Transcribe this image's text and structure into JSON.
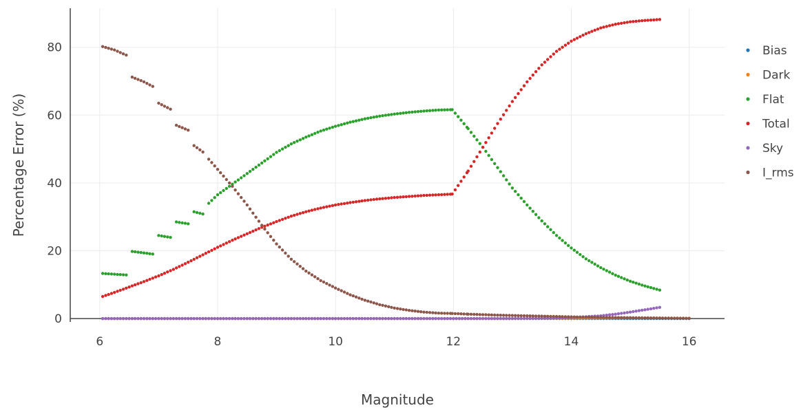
{
  "chart_data": {
    "type": "scatter",
    "title": "",
    "xlabel": "Magnitude",
    "ylabel": "Percentage Error (%)",
    "xlim": [
      5.5,
      16.6
    ],
    "ylim": [
      -1,
      91.5
    ],
    "xticks": [
      6,
      8,
      10,
      12,
      14,
      16
    ],
    "yticks": [
      0,
      20,
      40,
      60,
      80
    ],
    "grid": true,
    "legend_position": "right",
    "series": [
      {
        "name": "Bias",
        "color": "#1f77b4",
        "x": [
          6.05,
          16.0
        ],
        "y": [
          0,
          0
        ]
      },
      {
        "name": "Dark",
        "color": "#ff7f0e",
        "x": [
          6.05,
          13.0,
          14.0,
          15.0,
          16.0
        ],
        "y": [
          0,
          0,
          0.1,
          0.2,
          0.1
        ]
      },
      {
        "name": "Flat",
        "color": "#2ca02c",
        "x": [
          6.05,
          6.5,
          6.55,
          6.95,
          7.0,
          7.25,
          7.3,
          7.55,
          7.6,
          7.8,
          7.85,
          8.0,
          8.2,
          8.4,
          8.6,
          8.8,
          9.0,
          9.25,
          9.5,
          9.75,
          10.0,
          10.25,
          10.5,
          10.75,
          11.0,
          11.25,
          11.5,
          11.75,
          11.98,
          12.25,
          12.5,
          12.75,
          13.0,
          13.25,
          13.5,
          13.75,
          14.0,
          14.25,
          14.5,
          14.75,
          15.0,
          15.25,
          15.5
        ],
        "y": [
          13.3,
          12.8,
          19.8,
          18.9,
          24.5,
          23.8,
          28.5,
          27.8,
          31.5,
          30.6,
          34.0,
          36.5,
          39.0,
          41.5,
          44.0,
          46.5,
          49.0,
          51.5,
          53.5,
          55.3,
          56.7,
          57.9,
          58.9,
          59.7,
          60.3,
          60.8,
          61.2,
          61.5,
          61.6,
          56.0,
          50.5,
          44.5,
          38.5,
          33.5,
          28.8,
          24.5,
          20.8,
          17.6,
          15.0,
          12.8,
          11.0,
          9.6,
          8.4
        ]
      },
      {
        "name": "Total",
        "color": "#d62728",
        "x": [
          6.05,
          6.25,
          6.5,
          6.75,
          7.0,
          7.25,
          7.5,
          7.75,
          8.0,
          8.25,
          8.5,
          8.75,
          9.0,
          9.25,
          9.5,
          9.75,
          10.0,
          10.25,
          10.5,
          10.75,
          11.0,
          11.25,
          11.5,
          11.75,
          11.98,
          12.25,
          12.5,
          12.75,
          13.0,
          13.25,
          13.5,
          13.75,
          14.0,
          14.25,
          14.5,
          14.75,
          15.0,
          15.25,
          15.5
        ],
        "y": [
          6.5,
          7.7,
          9.3,
          10.9,
          12.6,
          14.5,
          16.6,
          18.8,
          21.0,
          23.1,
          25.0,
          26.9,
          28.6,
          30.2,
          31.5,
          32.6,
          33.5,
          34.2,
          34.8,
          35.3,
          35.7,
          36.0,
          36.3,
          36.5,
          36.7,
          43.5,
          50.5,
          57.5,
          64.0,
          69.8,
          74.8,
          78.8,
          81.8,
          84.0,
          85.7,
          86.8,
          87.5,
          87.9,
          88.2
        ]
      },
      {
        "name": "Sky",
        "color": "#9467bd",
        "x": [
          6.05,
          13.0,
          13.5,
          14.0,
          14.5,
          14.75,
          15.0,
          15.25,
          15.5
        ],
        "y": [
          0,
          0,
          0.05,
          0.3,
          0.8,
          1.3,
          1.9,
          2.6,
          3.3
        ]
      },
      {
        "name": "I_rms",
        "color": "#8c564b",
        "x": [
          6.05,
          6.25,
          6.5,
          6.55,
          6.75,
          6.95,
          7.0,
          7.25,
          7.3,
          7.55,
          7.6,
          7.8,
          7.85,
          8.0,
          8.25,
          8.5,
          8.75,
          9.0,
          9.25,
          9.5,
          9.75,
          10.0,
          10.25,
          10.5,
          10.75,
          11.0,
          11.25,
          11.5,
          11.75,
          11.98,
          12.25,
          12.5,
          12.75,
          13.0,
          13.25,
          13.5,
          13.75,
          14.0,
          14.5,
          15.0,
          15.5,
          16.0
        ],
        "y": [
          80.2,
          79.2,
          77.3,
          71.2,
          69.8,
          68.0,
          63.5,
          61.3,
          57.0,
          55.2,
          51.0,
          48.5,
          47.0,
          44.0,
          39.0,
          33.5,
          27.5,
          22.0,
          17.5,
          14.0,
          11.2,
          9.0,
          7.0,
          5.4,
          4.1,
          3.1,
          2.4,
          1.9,
          1.6,
          1.5,
          1.3,
          1.15,
          1.0,
          0.9,
          0.8,
          0.7,
          0.6,
          0.5,
          0.35,
          0.25,
          0.15,
          0.05
        ]
      }
    ]
  }
}
